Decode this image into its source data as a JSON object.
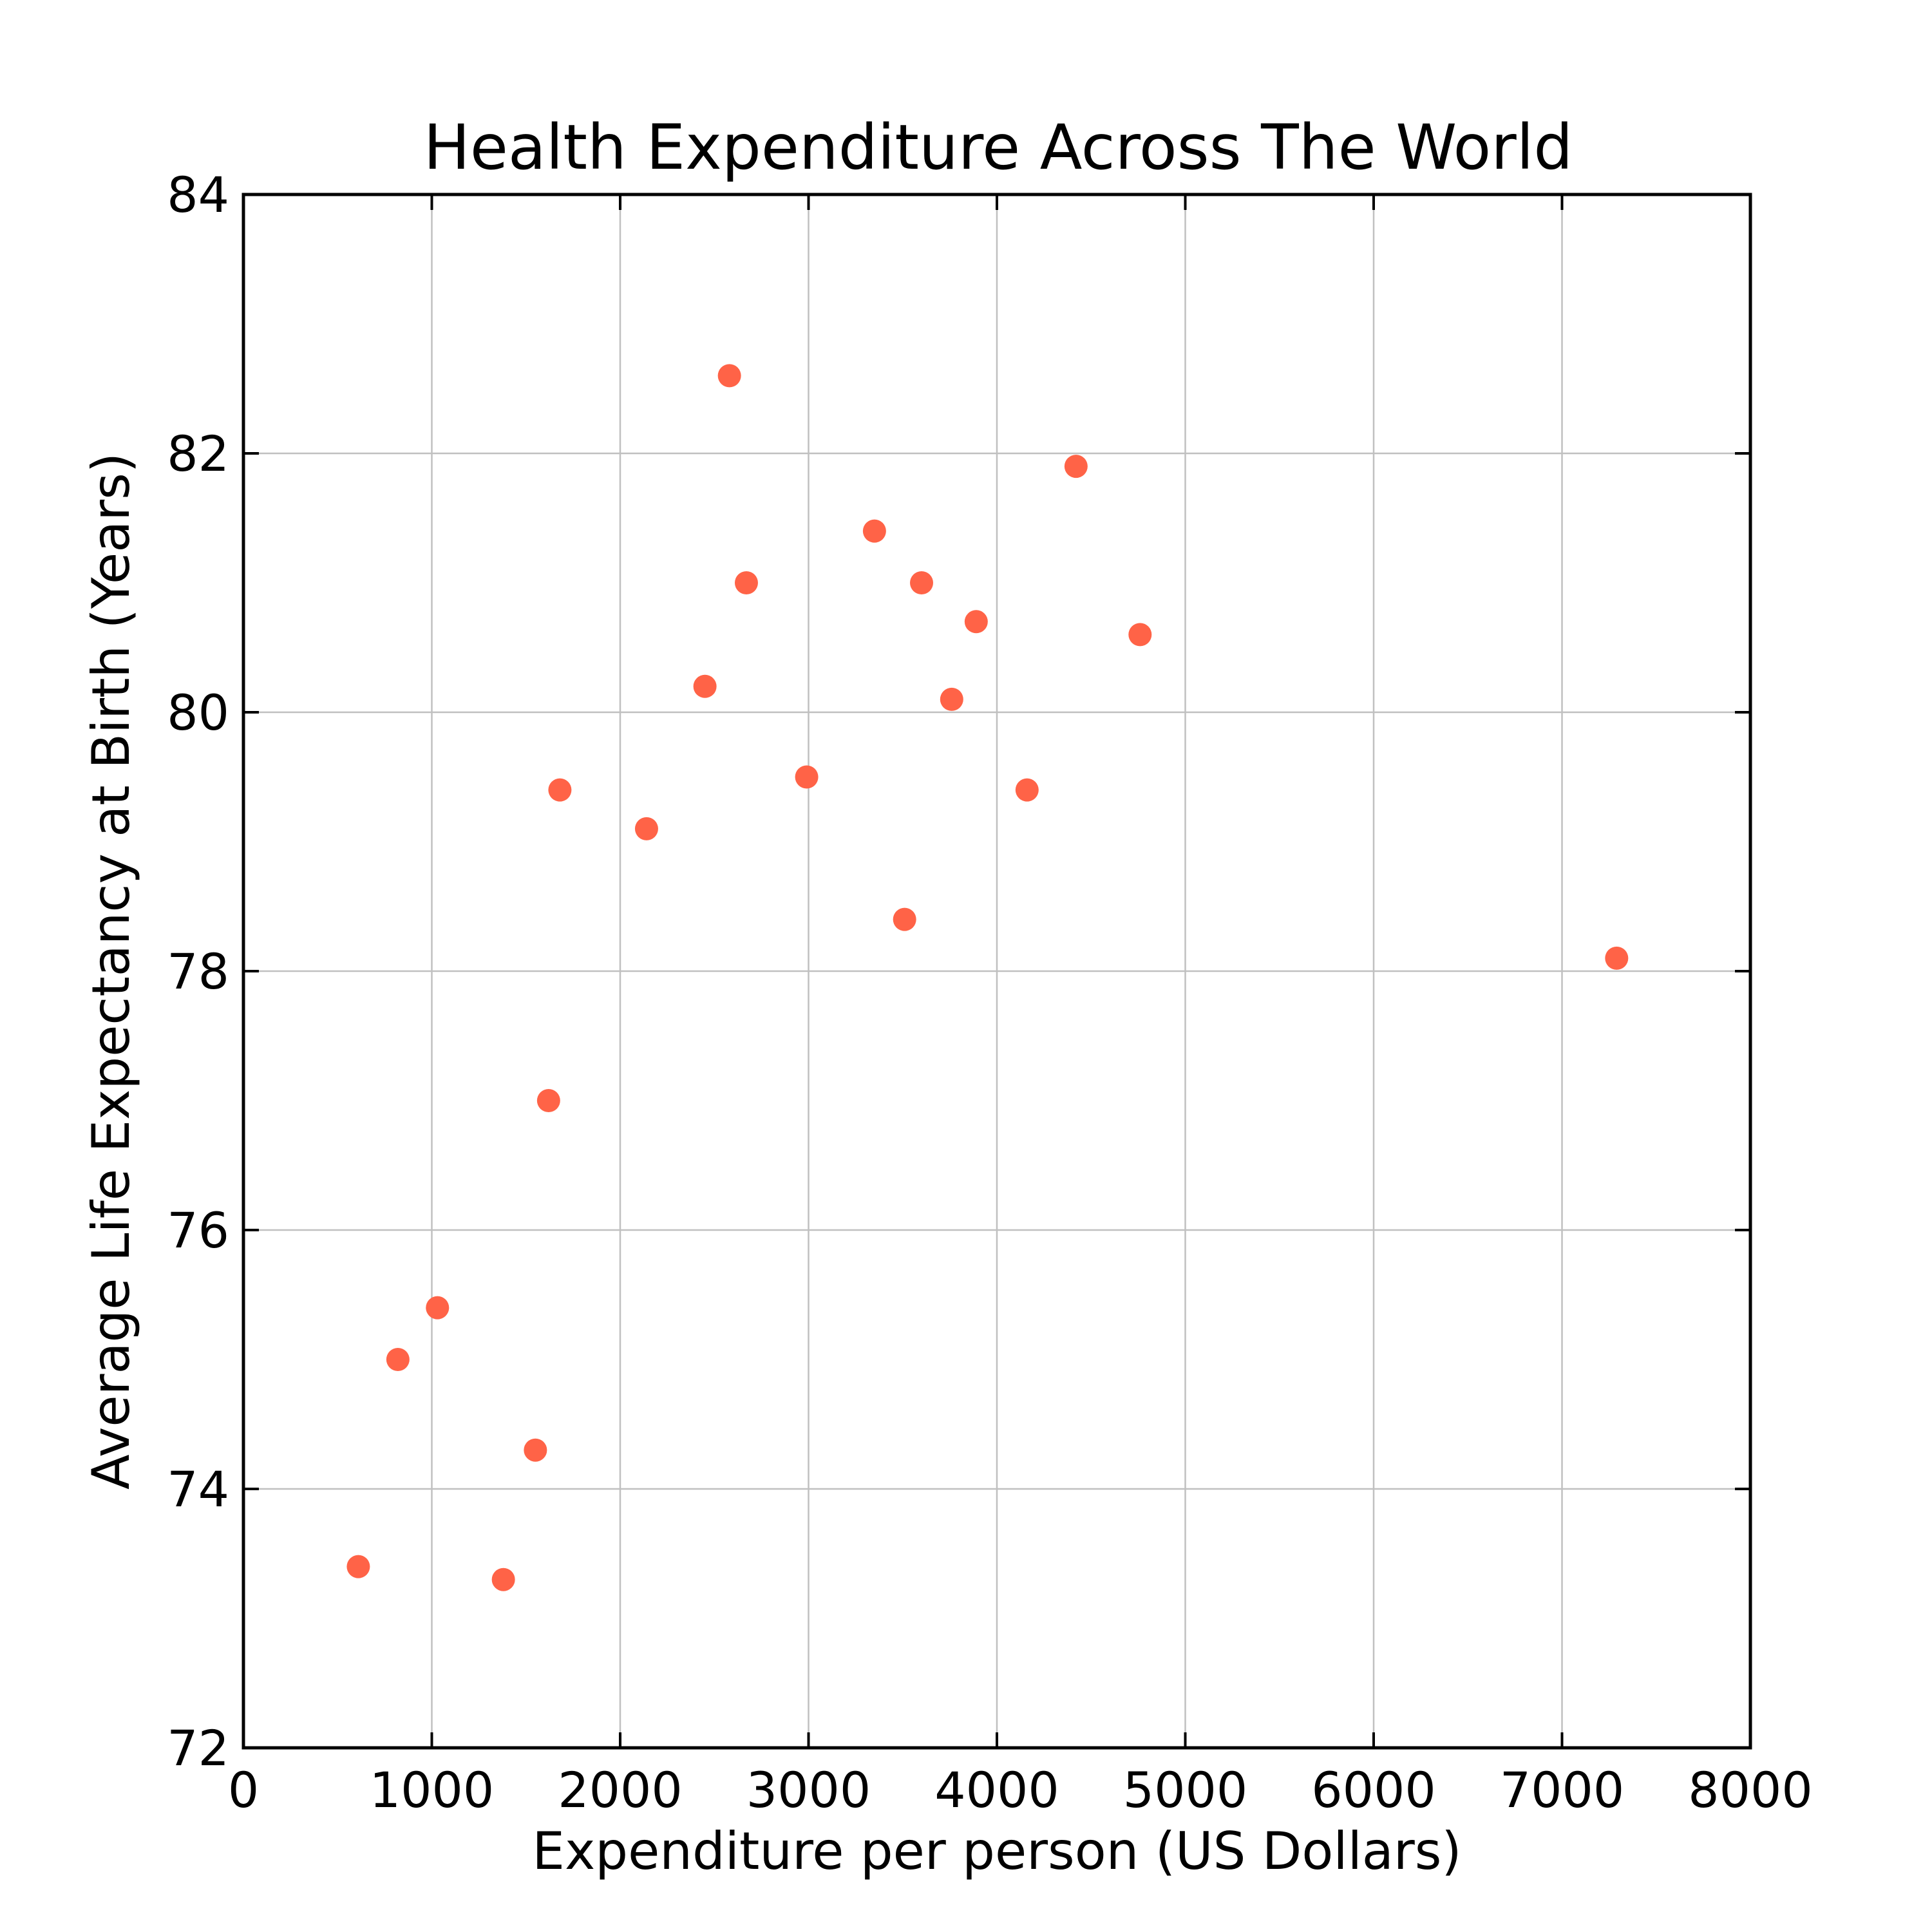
{
  "chart_data": {
    "type": "scatter",
    "title": "Health Expenditure Across The World",
    "xlabel": "Expenditure per person (US Dollars)",
    "ylabel": "Average Life Expectancy at Birth (Years)",
    "xlim": [
      0,
      8000
    ],
    "ylim": [
      72,
      84
    ],
    "xticks": [
      0,
      1000,
      2000,
      3000,
      4000,
      5000,
      6000,
      7000,
      8000
    ],
    "yticks": [
      72,
      74,
      76,
      78,
      80,
      82,
      84
    ],
    "grid": true,
    "legend": "none",
    "marker_color": "#ff6347",
    "points": [
      {
        "x": 610,
        "y": 73.4
      },
      {
        "x": 820,
        "y": 75.0
      },
      {
        "x": 1030,
        "y": 75.4
      },
      {
        "x": 1380,
        "y": 73.3
      },
      {
        "x": 1550,
        "y": 74.3
      },
      {
        "x": 1620,
        "y": 77.0
      },
      {
        "x": 1680,
        "y": 79.4
      },
      {
        "x": 2140,
        "y": 79.1
      },
      {
        "x": 2450,
        "y": 80.2
      },
      {
        "x": 2580,
        "y": 82.6
      },
      {
        "x": 2670,
        "y": 81.0
      },
      {
        "x": 2990,
        "y": 79.5
      },
      {
        "x": 3350,
        "y": 81.4
      },
      {
        "x": 3510,
        "y": 78.4
      },
      {
        "x": 3600,
        "y": 81.0
      },
      {
        "x": 3760,
        "y": 80.1
      },
      {
        "x": 3890,
        "y": 80.7
      },
      {
        "x": 4160,
        "y": 79.4
      },
      {
        "x": 4420,
        "y": 81.9
      },
      {
        "x": 4760,
        "y": 80.6
      },
      {
        "x": 7290,
        "y": 78.1
      }
    ]
  }
}
